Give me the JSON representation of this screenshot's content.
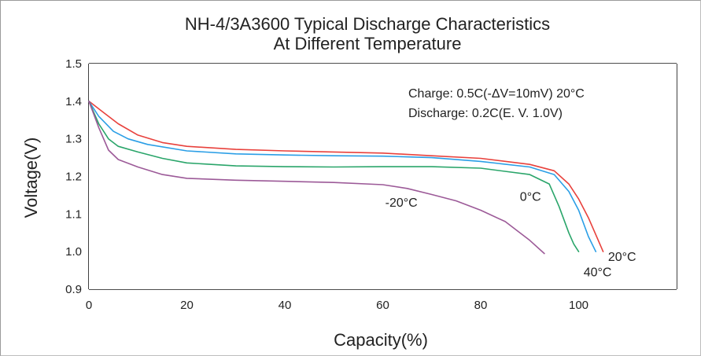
{
  "chart_data": {
    "type": "line",
    "title": "NH-4/3A3600 Typical Discharge Characteristics",
    "subtitle": "At Different Temperature",
    "xlabel": "Capacity(%)",
    "ylabel": "Voltage(V)",
    "xlim": [
      0,
      120
    ],
    "ylim": [
      0.9,
      1.5
    ],
    "xticks": [
      "0",
      "20",
      "40",
      "60",
      "80",
      "100"
    ],
    "yticks": [
      "0.9",
      "1.0",
      "1.1",
      "1.2",
      "1.3",
      "1.4",
      "1.5"
    ],
    "grid": true,
    "annotations": {
      "charge": "Charge: 0.5C(-ΔV=10mV) 20°C",
      "discharge": "Discharge: 0.2C(E. V.  1.0V)"
    },
    "series": [
      {
        "name": "20°C",
        "color": "#e8413c",
        "x": [
          0,
          3,
          6,
          10,
          15,
          20,
          30,
          40,
          50,
          60,
          70,
          80,
          90,
          95,
          98,
          100,
          102,
          104,
          105
        ],
        "y": [
          1.4,
          1.37,
          1.34,
          1.31,
          1.29,
          1.28,
          1.272,
          1.268,
          1.265,
          1.262,
          1.255,
          1.248,
          1.232,
          1.215,
          1.18,
          1.14,
          1.09,
          1.03,
          1.0
        ]
      },
      {
        "name": "40°C",
        "color": "#2a9ee6",
        "x": [
          0,
          2,
          5,
          8,
          12,
          20,
          30,
          40,
          50,
          60,
          70,
          80,
          90,
          95,
          98,
          100,
          102,
          103.5
        ],
        "y": [
          1.4,
          1.36,
          1.32,
          1.3,
          1.285,
          1.268,
          1.26,
          1.257,
          1.255,
          1.254,
          1.25,
          1.24,
          1.225,
          1.205,
          1.16,
          1.11,
          1.04,
          1.0
        ]
      },
      {
        "name": "0°C",
        "color": "#2aa56a",
        "x": [
          0,
          2,
          4,
          6,
          10,
          15,
          20,
          30,
          40,
          50,
          60,
          70,
          80,
          90,
          94,
          96,
          98,
          99,
          100
        ],
        "y": [
          1.4,
          1.34,
          1.3,
          1.28,
          1.265,
          1.248,
          1.236,
          1.228,
          1.226,
          1.225,
          1.226,
          1.226,
          1.222,
          1.205,
          1.18,
          1.12,
          1.05,
          1.02,
          1.0
        ]
      },
      {
        "name": "-20°C",
        "color": "#9c5a98",
        "x": [
          0,
          2,
          4,
          6,
          10,
          15,
          20,
          30,
          40,
          50,
          60,
          65,
          70,
          75,
          80,
          85,
          90,
          93
        ],
        "y": [
          1.4,
          1.33,
          1.27,
          1.245,
          1.225,
          1.205,
          1.195,
          1.19,
          1.187,
          1.184,
          1.178,
          1.168,
          1.152,
          1.135,
          1.11,
          1.08,
          1.03,
          0.995
        ]
      }
    ],
    "series_labels": [
      {
        "text": "20°C",
        "x": 106,
        "y": 0.975
      },
      {
        "text": "40°C",
        "x": 101,
        "y": 0.935
      },
      {
        "text": "0°C",
        "x": 88,
        "y": 1.135
      },
      {
        "text": "-20°C",
        "x": 60.5,
        "y": 1.12
      }
    ]
  }
}
